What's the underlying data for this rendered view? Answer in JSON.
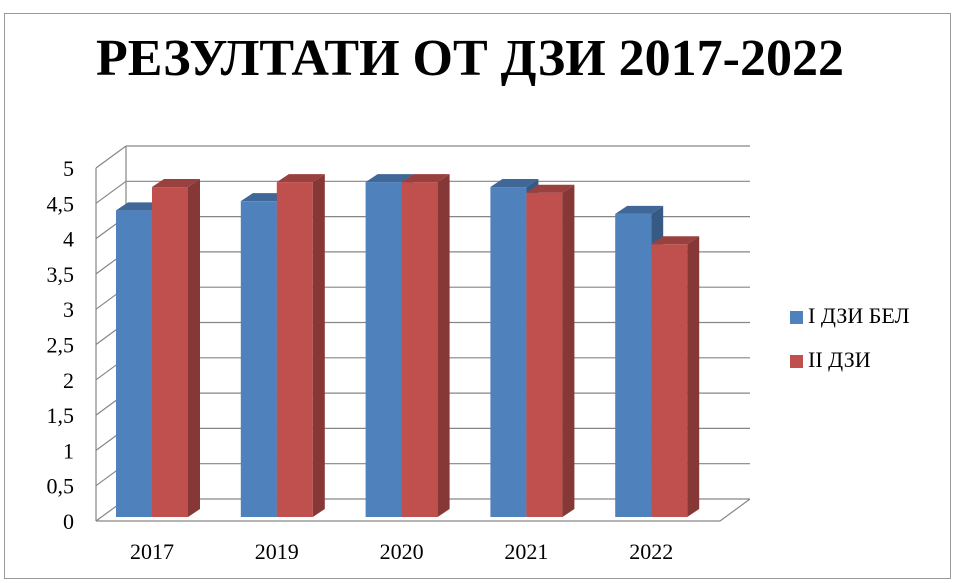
{
  "chart_data": {
    "type": "bar",
    "title": "РЕЗУЛТАТИ ОТ ДЗИ 2017-2022",
    "categories": [
      "2017",
      "2019",
      "2020",
      "2021",
      "2022"
    ],
    "series": [
      {
        "name": "I ДЗИ БЕЛ",
        "values": [
          4.4,
          4.53,
          4.8,
          4.73,
          4.35
        ],
        "color": "#4F81BD"
      },
      {
        "name": "II ДЗИ",
        "values": [
          4.73,
          4.8,
          4.8,
          4.65,
          3.92
        ],
        "color": "#C0504D"
      }
    ],
    "ylim": [
      0,
      5
    ],
    "yticks": [
      "0",
      "0,5",
      "1",
      "1,5",
      "2",
      "2,5",
      "3",
      "3,5",
      "4",
      "4,5",
      "5"
    ],
    "legend_position": "right",
    "grid": true
  }
}
